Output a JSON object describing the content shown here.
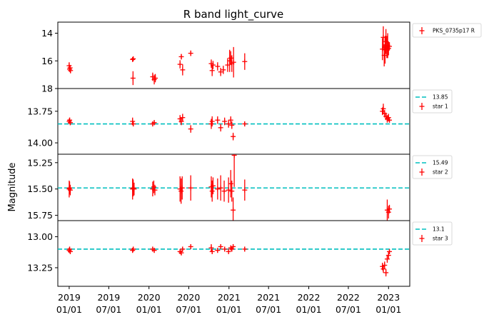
{
  "chart_data": {
    "type": "scatter",
    "title": "R band light_curve",
    "ylabel": "Magnitude",
    "shared_x": {
      "range": [
        "2018-11-10",
        "2023-04-08"
      ],
      "ticks": [
        {
          "date": "2019-01-01",
          "label": [
            "2019",
            "01/01"
          ]
        },
        {
          "date": "2019-07-01",
          "label": [
            "2019",
            "07/01"
          ]
        },
        {
          "date": "2020-01-01",
          "label": [
            "2020",
            "01/01"
          ]
        },
        {
          "date": "2020-07-01",
          "label": [
            "2020",
            "07/01"
          ]
        },
        {
          "date": "2021-01-01",
          "label": [
            "2021",
            "01/01"
          ]
        },
        {
          "date": "2021-07-01",
          "label": [
            "2021",
            "07/01"
          ]
        },
        {
          "date": "2022-01-01",
          "label": [
            "2022",
            "01/01"
          ]
        },
        {
          "date": "2022-07-01",
          "label": [
            "2022",
            "07/01"
          ]
        },
        {
          "date": "2023-01-01",
          "label": [
            "2023",
            "01/01"
          ]
        }
      ]
    },
    "panels": [
      {
        "ylim": [
          18.0,
          13.2
        ],
        "yticks": [
          14,
          16,
          18
        ],
        "ytick_labels": [
          "14",
          "16",
          "18"
        ],
        "color": "#ff0000",
        "series": [
          {
            "name": "PKS_0735p17 R",
            "marker": "+",
            "points": [
              [
                "2019-01-01",
                16.35,
                0.25
              ],
              [
                "2019-01-03",
                16.6,
                0.2
              ],
              [
                "2019-01-05",
                16.5,
                0.2
              ],
              [
                "2019-01-07",
                16.7,
                0.2
              ],
              [
                "2019-10-18",
                15.9,
                0.15
              ],
              [
                "2019-10-20",
                17.25,
                0.5
              ],
              [
                "2019-10-21",
                15.85,
                0.15
              ],
              [
                "2020-01-18",
                17.15,
                0.3
              ],
              [
                "2020-01-25",
                17.35,
                0.35
              ],
              [
                "2020-01-30",
                17.25,
                0.3
              ],
              [
                "2020-05-22",
                16.25,
                0.3
              ],
              [
                "2020-05-28",
                15.7,
                0.2
              ],
              [
                "2020-06-03",
                16.65,
                0.4
              ],
              [
                "2020-07-10",
                15.45,
                0.2
              ],
              [
                "2020-10-12",
                16.2,
                0.3
              ],
              [
                "2020-10-16",
                16.7,
                0.4
              ],
              [
                "2020-10-20",
                16.3,
                0.3
              ],
              [
                "2020-11-10",
                16.4,
                0.3
              ],
              [
                "2020-11-24",
                16.8,
                0.3
              ],
              [
                "2020-12-06",
                16.65,
                0.3
              ],
              [
                "2020-12-26",
                16.3,
                0.5
              ],
              [
                "2021-01-04",
                16.0,
                0.8
              ],
              [
                "2021-01-09",
                15.8,
                0.5
              ],
              [
                "2021-01-14",
                16.2,
                0.6
              ],
              [
                "2021-01-22",
                16.1,
                1.1
              ],
              [
                "2021-03-14",
                16.05,
                0.6
              ],
              [
                "2022-12-04",
                15.15,
                0.8
              ],
              [
                "2022-12-08",
                14.3,
                0.8
              ],
              [
                "2022-12-12",
                15.6,
                0.8
              ],
              [
                "2022-12-16",
                15.2,
                1.0
              ],
              [
                "2022-12-20",
                14.6,
                0.9
              ],
              [
                "2022-12-24",
                15.0,
                0.8
              ],
              [
                "2022-12-28",
                14.9,
                0.9
              ],
              [
                "2023-01-01",
                15.1,
                0.5
              ],
              [
                "2023-01-05",
                14.95,
                0.3
              ]
            ]
          }
        ]
      },
      {
        "ylim": [
          14.09,
          13.57
        ],
        "yticks": [
          13.75,
          14.0
        ],
        "ytick_labels": [
          "13.75",
          "14.00"
        ],
        "color": "#ff0000",
        "reference_line": {
          "value": 13.85,
          "label": "13.85",
          "color": "#00bfbf"
        },
        "series": [
          {
            "name": "star 1",
            "marker": "+",
            "points": [
              [
                "2019-01-01",
                13.83,
                0.02
              ],
              [
                "2019-01-03",
                13.82,
                0.02
              ],
              [
                "2019-01-06",
                13.84,
                0.02
              ],
              [
                "2019-10-18",
                13.83,
                0.03
              ],
              [
                "2019-10-21",
                13.85,
                0.02
              ],
              [
                "2020-01-18",
                13.85,
                0.02
              ],
              [
                "2020-01-25",
                13.84,
                0.02
              ],
              [
                "2020-05-22",
                13.81,
                0.03
              ],
              [
                "2020-05-28",
                13.83,
                0.03
              ],
              [
                "2020-06-03",
                13.8,
                0.03
              ],
              [
                "2020-07-10",
                13.89,
                0.03
              ],
              [
                "2020-10-12",
                13.85,
                0.04
              ],
              [
                "2020-10-16",
                13.83,
                0.04
              ],
              [
                "2020-11-10",
                13.82,
                0.03
              ],
              [
                "2020-11-24",
                13.88,
                0.03
              ],
              [
                "2020-12-12",
                13.83,
                0.03
              ],
              [
                "2020-12-30",
                13.85,
                0.03
              ],
              [
                "2021-01-09",
                13.82,
                0.03
              ],
              [
                "2021-01-14",
                13.86,
                0.03
              ],
              [
                "2021-01-20",
                13.95,
                0.03
              ],
              [
                "2021-03-14",
                13.85,
                0.02
              ],
              [
                "2022-12-04",
                13.75,
                0.03
              ],
              [
                "2022-12-08",
                13.73,
                0.04
              ],
              [
                "2022-12-14",
                13.77,
                0.03
              ],
              [
                "2022-12-20",
                13.79,
                0.03
              ],
              [
                "2022-12-26",
                13.81,
                0.03
              ],
              [
                "2023-01-01",
                13.8,
                0.03
              ],
              [
                "2023-01-05",
                13.82,
                0.02
              ]
            ]
          }
        ]
      },
      {
        "ylim": [
          15.8,
          15.17
        ],
        "yticks": [
          15.25,
          15.5,
          15.75
        ],
        "ytick_labels": [
          "15.25",
          "15.50",
          "15.75"
        ],
        "color": "#ff0000",
        "reference_line": {
          "value": 15.49,
          "label": "15.49",
          "color": "#00bfbf"
        },
        "series": [
          {
            "name": "star 2",
            "marker": "+",
            "points": [
              [
                "2019-01-01",
                15.5,
                0.08
              ],
              [
                "2019-01-03",
                15.49,
                0.06
              ],
              [
                "2019-01-06",
                15.51,
                0.05
              ],
              [
                "2019-10-18",
                15.5,
                0.1
              ],
              [
                "2019-10-21",
                15.49,
                0.08
              ],
              [
                "2019-10-25",
                15.5,
                0.06
              ],
              [
                "2020-01-18",
                15.5,
                0.07
              ],
              [
                "2020-01-23",
                15.48,
                0.06
              ],
              [
                "2020-01-28",
                15.51,
                0.05
              ],
              [
                "2020-05-22",
                15.5,
                0.12
              ],
              [
                "2020-05-27",
                15.52,
                0.12
              ],
              [
                "2020-06-01",
                15.49,
                0.11
              ],
              [
                "2020-07-10",
                15.49,
                0.12
              ],
              [
                "2020-10-12",
                15.48,
                0.1
              ],
              [
                "2020-10-16",
                15.52,
                0.1
              ],
              [
                "2020-10-20",
                15.47,
                0.08
              ],
              [
                "2020-11-10",
                15.5,
                0.1
              ],
              [
                "2020-11-24",
                15.49,
                0.12
              ],
              [
                "2020-12-10",
                15.52,
                0.1
              ],
              [
                "2020-12-30",
                15.51,
                0.12
              ],
              [
                "2021-01-09",
                15.45,
                0.13
              ],
              [
                "2021-01-14",
                15.52,
                0.1
              ],
              [
                "2021-01-20",
                15.7,
                0.12
              ],
              [
                "2021-01-25",
                15.18,
                0.3
              ],
              [
                "2021-03-14",
                15.51,
                0.1
              ],
              [
                "2022-12-26",
                15.7,
                0.1
              ],
              [
                "2023-01-01",
                15.72,
                0.06
              ],
              [
                "2023-01-05",
                15.69,
                0.04
              ]
            ]
          }
        ]
      },
      {
        "ylim": [
          13.4,
          12.87
        ],
        "yticks": [
          13.0,
          13.25
        ],
        "ytick_labels": [
          "13.00",
          "13.25"
        ],
        "color": "#ff0000",
        "reference_line": {
          "value": 13.1,
          "label": "13.1",
          "color": "#00bfbf"
        },
        "series": [
          {
            "name": "star 3",
            "marker": "+",
            "points": [
              [
                "2019-01-01",
                13.11,
                0.02
              ],
              [
                "2019-01-03",
                13.1,
                0.02
              ],
              [
                "2019-01-06",
                13.12,
                0.02
              ],
              [
                "2019-10-18",
                13.11,
                0.02
              ],
              [
                "2019-10-21",
                13.1,
                0.02
              ],
              [
                "2020-01-18",
                13.1,
                0.02
              ],
              [
                "2020-01-25",
                13.11,
                0.02
              ],
              [
                "2020-05-22",
                13.12,
                0.02
              ],
              [
                "2020-05-28",
                13.13,
                0.02
              ],
              [
                "2020-06-03",
                13.1,
                0.02
              ],
              [
                "2020-07-10",
                13.08,
                0.02
              ],
              [
                "2020-10-12",
                13.09,
                0.03
              ],
              [
                "2020-10-16",
                13.12,
                0.02
              ],
              [
                "2020-11-10",
                13.11,
                0.02
              ],
              [
                "2020-11-24",
                13.08,
                0.02
              ],
              [
                "2020-12-12",
                13.1,
                0.02
              ],
              [
                "2020-12-30",
                13.12,
                0.02
              ],
              [
                "2021-01-09",
                13.09,
                0.02
              ],
              [
                "2021-01-14",
                13.1,
                0.02
              ],
              [
                "2021-01-20",
                13.08,
                0.02
              ],
              [
                "2021-03-14",
                13.1,
                0.02
              ],
              [
                "2022-12-04",
                13.24,
                0.03
              ],
              [
                "2022-12-08",
                13.26,
                0.03
              ],
              [
                "2022-12-14",
                13.23,
                0.03
              ],
              [
                "2022-12-20",
                13.29,
                0.03
              ],
              [
                "2022-12-26",
                13.18,
                0.03
              ],
              [
                "2023-01-01",
                13.15,
                0.03
              ],
              [
                "2023-01-05",
                13.12,
                0.02
              ]
            ]
          }
        ]
      }
    ]
  }
}
